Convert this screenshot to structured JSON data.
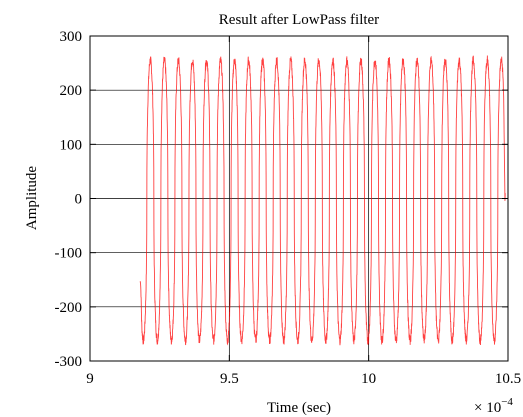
{
  "chart_data": {
    "type": "line",
    "title": "Result after LowPass filter",
    "xlabel": "Time (sec)",
    "ylabel": "Amplitude",
    "x_multiplier": "× 10",
    "x_multiplier_exp": "−4",
    "xlim": [
      9,
      10.5
    ],
    "ylim": [
      -300,
      300
    ],
    "xticks": [
      9,
      9.5,
      10,
      10.5
    ],
    "xtick_labels": [
      "9",
      "9.5",
      "10",
      "10.5"
    ],
    "yticks": [
      300,
      200,
      100,
      0,
      -100,
      -200,
      -300
    ],
    "ytick_labels": [
      "300",
      "200",
      "100",
      "0",
      "-100",
      "-200",
      "-300"
    ],
    "grid": true,
    "series": [
      {
        "color": "#ff0000",
        "x_start": 9.18,
        "x_end": 10.49,
        "cycles": 26,
        "amplitude_high": 255,
        "amplitude_low": -262,
        "initial_value": -155,
        "final_value": 10
      }
    ]
  }
}
